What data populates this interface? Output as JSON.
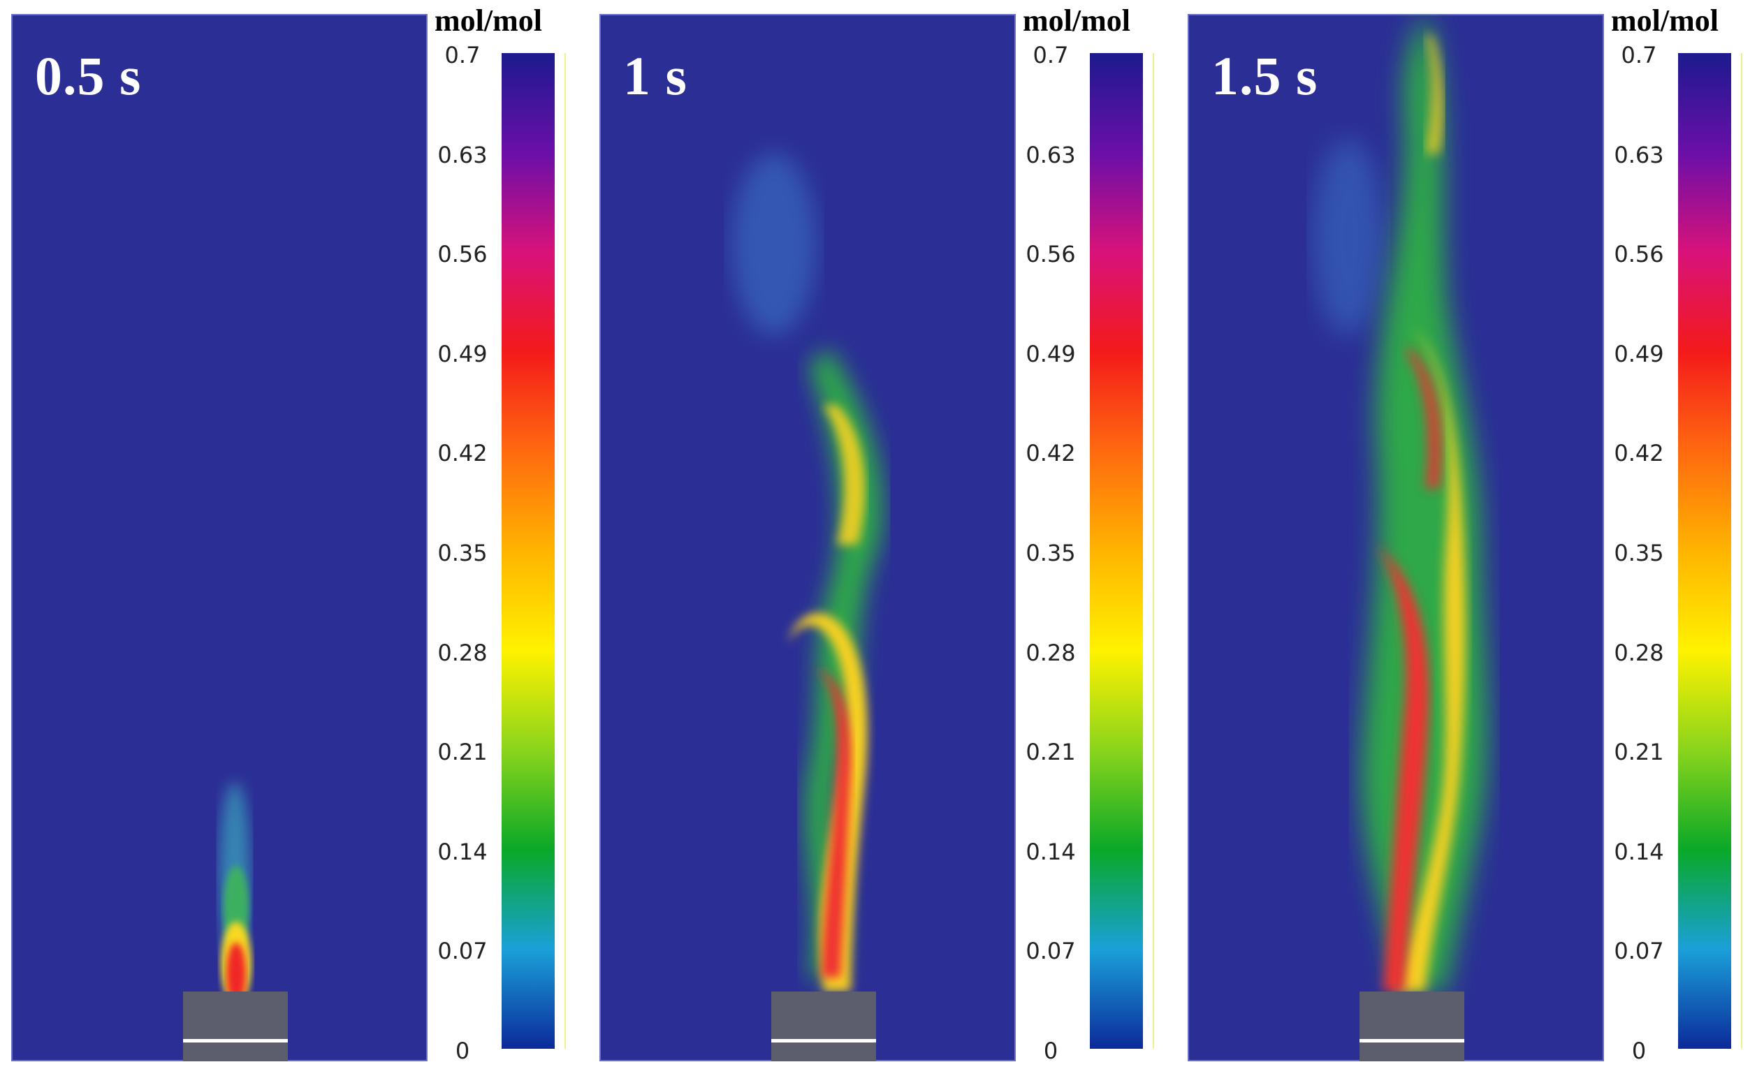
{
  "panels": [
    {
      "time_label": "0.5 s",
      "unit": "mol/mol"
    },
    {
      "time_label": "1 s",
      "unit": "mol/mol"
    },
    {
      "time_label": "1.5 s",
      "unit": "mol/mol"
    }
  ],
  "colorbar": {
    "ticks": [
      "0.7",
      "0.63",
      "0.56",
      "0.49",
      "0.42",
      "0.35",
      "0.28",
      "0.21",
      "0.14",
      "0.07",
      "0"
    ],
    "colors": [
      "#1c1a8e",
      "#6a0fa8",
      "#d8127a",
      "#f41a1a",
      "#ff6a10",
      "#ffb400",
      "#fff200",
      "#8ad41c",
      "#0aa828",
      "#1aa0d8",
      "#0c2a9a"
    ]
  },
  "background_color": "#2b2f95"
}
